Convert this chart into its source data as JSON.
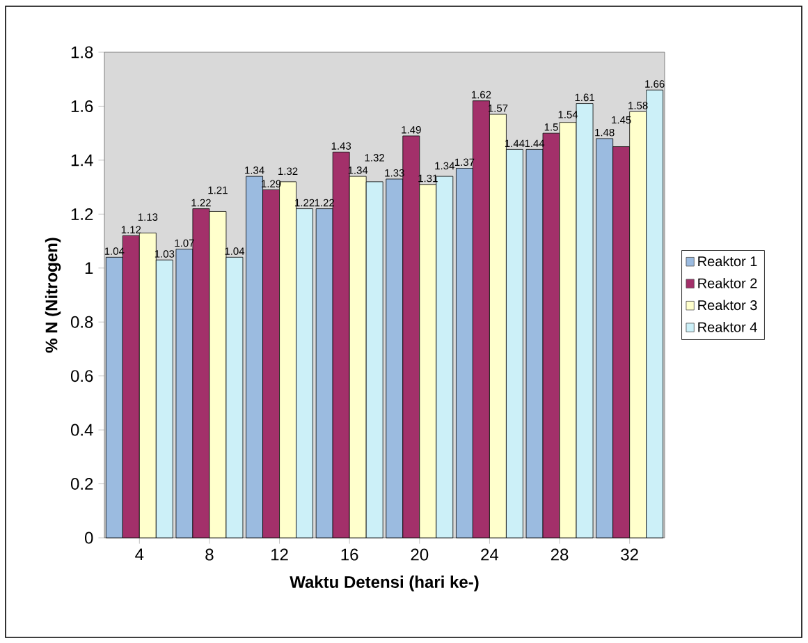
{
  "chart_data": {
    "type": "bar",
    "xlabel": "Waktu Detensi (hari ke-)",
    "ylabel": "% N (Nitrogen)",
    "categories": [
      "4",
      "8",
      "12",
      "16",
      "20",
      "24",
      "28",
      "32"
    ],
    "series": [
      {
        "name": "Reaktor 1",
        "color": "#9bbbe0",
        "values": [
          1.04,
          1.07,
          1.34,
          1.22,
          1.33,
          1.37,
          1.44,
          1.48
        ]
      },
      {
        "name": "Reaktor 2",
        "color": "#a3306a",
        "values": [
          1.12,
          1.22,
          1.29,
          1.43,
          1.49,
          1.62,
          1.5,
          1.45
        ]
      },
      {
        "name": "Reaktor 3",
        "color": "#ffffcc",
        "values": [
          1.13,
          1.21,
          1.32,
          1.34,
          1.31,
          1.57,
          1.54,
          1.58
        ]
      },
      {
        "name": "Reaktor 4",
        "color": "#ccf0f8",
        "values": [
          1.03,
          1.04,
          1.22,
          1.32,
          1.34,
          1.44,
          1.61,
          1.66
        ]
      }
    ],
    "ylim": [
      0,
      1.8
    ],
    "yticks": [
      0,
      0.2,
      0.4,
      0.6,
      0.8,
      1,
      1.2,
      1.4,
      1.6,
      1.8
    ],
    "data_labels": true,
    "legend": "right",
    "grid": false
  }
}
